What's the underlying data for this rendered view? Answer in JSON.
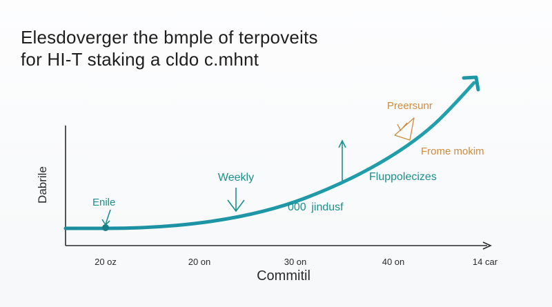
{
  "title": {
    "line1": "Elesdoverger the bmple of terpoveits",
    "line2": "for HI-T staking a cldo c.mhnt"
  },
  "axes": {
    "ylabel": "Dabrile",
    "xlabel": "Commitil",
    "xticks": [
      "20 oz",
      "20 on",
      "30 on",
      "40 on",
      "14 car"
    ]
  },
  "annotations": {
    "start": "Enile",
    "weekly": "Weekly",
    "mid": "000  jindusf",
    "right": "Fluppolecizes",
    "upper_top": "Preersunr",
    "upper_bottom": "Frome mokim"
  },
  "colors": {
    "curve": "#1f98a6",
    "accent_text": "#1a8f8c",
    "orange_text": "#d18a3a",
    "axis": "#2a2a2a"
  }
}
